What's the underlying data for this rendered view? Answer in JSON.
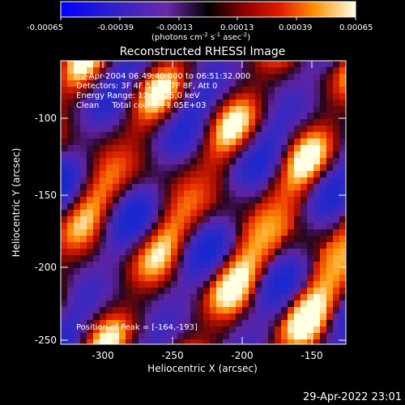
{
  "colorbar": {
    "ticks": [
      "-0.00065",
      "-0.00039",
      "-0.00013",
      "0.00013",
      "0.00039",
      "0.00065"
    ],
    "unit_main": "(photons cm",
    "unit_sup1": "-2",
    "unit_mid": " s",
    "unit_sup2": "-1",
    "unit_mid2": " asec",
    "unit_sup3": "-2",
    "unit_end": ")"
  },
  "title": "Reconstructed RHESSI Image",
  "annotations": {
    "time": "2-Apr-2004 06:49:40.000 to 06:51:32.000",
    "detectors": "Detectors: 3F 4F 5F 6F 7F 8F, Att 0",
    "energy": "Energy Range: 12.0 - 25.0 keV",
    "clean": "Clean     Total counts: 1.05E+03",
    "peak": "Position of Peak = [-164,-193]"
  },
  "axes": {
    "xlabel": "Heliocentric X (arcsec)",
    "ylabel": "Heliocentric Y (arcsec)",
    "xticks": [
      "-300",
      "-250",
      "-200",
      "-150"
    ],
    "yticks": [
      "-100",
      "-150",
      "-200",
      "-250"
    ]
  },
  "timestamp": "29-Apr-2022 23:01"
}
